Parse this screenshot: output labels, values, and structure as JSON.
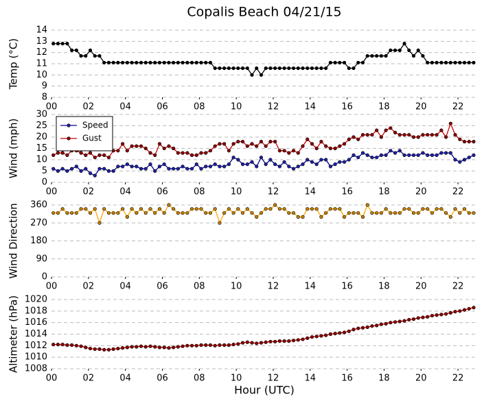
{
  "chart_data": [
    {
      "type": "line",
      "title": "Copalis Beach 04/21/15",
      "ylabel": "Temp (°C)",
      "x": [
        0.1,
        0.35,
        0.6,
        0.85,
        1.1,
        1.35,
        1.6,
        1.85,
        2.1,
        2.35,
        2.6,
        2.85,
        3.1,
        3.35,
        3.6,
        3.85,
        4.1,
        4.35,
        4.6,
        4.85,
        5.1,
        5.35,
        5.6,
        5.85,
        6.1,
        6.35,
        6.6,
        6.85,
        7.1,
        7.35,
        7.6,
        7.85,
        8.1,
        8.35,
        8.6,
        8.85,
        9.1,
        9.35,
        9.6,
        9.85,
        10.1,
        10.35,
        10.6,
        10.85,
        11.1,
        11.35,
        11.6,
        11.85,
        12.1,
        12.35,
        12.6,
        12.85,
        13.1,
        13.35,
        13.6,
        13.85,
        14.1,
        14.35,
        14.6,
        14.85,
        15.1,
        15.35,
        15.6,
        15.85,
        16.1,
        16.35,
        16.6,
        16.85,
        17.1,
        17.35,
        17.6,
        17.85,
        18.1,
        18.35,
        18.6,
        18.85,
        19.1,
        19.35,
        19.6,
        19.85,
        20.1,
        20.35,
        20.6,
        20.85,
        21.1,
        21.35,
        21.6,
        21.85,
        22.1,
        22.35,
        22.6,
        22.85
      ],
      "series": [
        {
          "name": "Temp",
          "color": "#000000",
          "marker_color": "#000000",
          "values": [
            12.8,
            12.8,
            12.8,
            12.8,
            12.2,
            12.2,
            11.7,
            11.7,
            12.2,
            11.7,
            11.7,
            11.1,
            11.1,
            11.1,
            11.1,
            11.1,
            11.1,
            11.1,
            11.1,
            11.1,
            11.1,
            11.1,
            11.1,
            11.1,
            11.1,
            11.1,
            11.1,
            11.1,
            11.1,
            11.1,
            11.1,
            11.1,
            11.1,
            11.1,
            11.1,
            10.6,
            10.6,
            10.6,
            10.6,
            10.6,
            10.6,
            10.6,
            10.6,
            10.0,
            10.6,
            10.0,
            10.6,
            10.6,
            10.6,
            10.6,
            10.6,
            10.6,
            10.6,
            10.6,
            10.6,
            10.6,
            10.6,
            10.6,
            10.6,
            10.6,
            11.1,
            11.1,
            11.1,
            11.1,
            10.6,
            10.6,
            11.1,
            11.1,
            11.7,
            11.7,
            11.7,
            11.7,
            11.7,
            12.2,
            12.2,
            12.2,
            12.8,
            12.2,
            11.7,
            12.2,
            11.7,
            11.1,
            11.1,
            11.1,
            11.1,
            11.1,
            11.1,
            11.1,
            11.1,
            11.1,
            11.1,
            11.1
          ]
        }
      ],
      "xlim": [
        0,
        23
      ],
      "xticks": [
        {
          "value": 0,
          "label": "00"
        },
        {
          "value": 2,
          "label": "02"
        },
        {
          "value": 4,
          "label": "04"
        },
        {
          "value": 6,
          "label": "06"
        },
        {
          "value": 8,
          "label": "08"
        },
        10,
        12,
        14,
        16,
        18,
        20,
        22
      ],
      "ylim": [
        8,
        14
      ],
      "yticks": [
        8,
        9,
        10,
        11,
        12,
        13,
        14
      ],
      "grid": true
    },
    {
      "type": "line",
      "ylabel": "Wind (mph)",
      "legend": "upper left",
      "x": [
        0.1,
        0.35,
        0.6,
        0.85,
        1.1,
        1.35,
        1.6,
        1.85,
        2.1,
        2.35,
        2.6,
        2.85,
        3.1,
        3.35,
        3.6,
        3.85,
        4.1,
        4.35,
        4.6,
        4.85,
        5.1,
        5.35,
        5.6,
        5.85,
        6.1,
        6.35,
        6.6,
        6.85,
        7.1,
        7.35,
        7.6,
        7.85,
        8.1,
        8.35,
        8.6,
        8.85,
        9.1,
        9.35,
        9.6,
        9.85,
        10.1,
        10.35,
        10.6,
        10.85,
        11.1,
        11.35,
        11.6,
        11.85,
        12.1,
        12.35,
        12.6,
        12.85,
        13.1,
        13.35,
        13.6,
        13.85,
        14.1,
        14.35,
        14.6,
        14.85,
        15.1,
        15.35,
        15.6,
        15.85,
        16.1,
        16.35,
        16.6,
        16.85,
        17.1,
        17.35,
        17.6,
        17.85,
        18.1,
        18.35,
        18.6,
        18.85,
        19.1,
        19.35,
        19.6,
        19.85,
        20.1,
        20.35,
        20.6,
        20.85,
        21.1,
        21.35,
        21.6,
        21.85,
        22.1,
        22.35,
        22.6,
        22.85
      ],
      "series": [
        {
          "name": "Speed",
          "color": "#00008b",
          "marker_color": "#1f1fa8",
          "values": [
            6,
            5,
            6,
            5,
            6,
            7,
            5,
            6,
            4,
            3,
            6,
            6,
            5,
            5,
            7,
            7,
            8,
            7,
            7,
            6,
            6,
            8,
            5,
            7,
            8,
            6,
            6,
            6,
            7,
            6,
            6,
            8,
            6,
            7,
            7,
            8,
            7,
            7,
            8,
            11,
            10,
            8,
            8,
            9,
            7,
            11,
            8,
            10,
            8,
            7,
            9,
            7,
            6,
            7,
            8,
            10,
            9,
            8,
            10,
            10,
            7,
            8,
            9,
            9,
            10,
            12,
            11,
            13,
            12,
            11,
            11,
            12,
            12,
            14,
            13,
            14,
            12,
            12,
            12,
            12,
            13,
            12,
            12,
            12,
            13,
            13,
            13,
            10,
            9,
            10,
            11,
            12
          ]
        },
        {
          "name": "Gust",
          "color": "#cc0000",
          "marker_color": "#8b0000",
          "values": [
            12,
            13,
            13,
            12,
            14,
            14,
            13,
            12,
            13,
            11,
            12,
            12,
            11,
            14,
            14,
            17,
            14,
            16,
            16,
            16,
            15,
            13,
            12,
            17,
            15,
            16,
            15,
            13,
            13,
            13,
            12,
            12,
            13,
            13,
            14,
            16,
            17,
            17,
            14,
            17,
            18,
            18,
            16,
            17,
            16,
            18,
            16,
            18,
            18,
            14,
            14,
            13,
            14,
            13,
            16,
            19,
            17,
            15,
            18,
            16,
            15,
            15,
            16,
            17,
            19,
            20,
            19,
            21,
            21,
            21,
            23,
            20,
            23,
            24,
            22,
            21,
            21,
            21,
            20,
            20,
            21,
            21,
            21,
            21,
            23,
            20,
            26,
            21,
            19,
            18,
            18,
            18
          ]
        }
      ],
      "xlim": [
        0,
        23
      ],
      "xticks": [
        {
          "value": 0,
          "label": "00"
        },
        {
          "value": 2,
          "label": "02"
        },
        {
          "value": 4,
          "label": "04"
        },
        {
          "value": 6,
          "label": "06"
        },
        {
          "value": 8,
          "label": "08"
        },
        10,
        12,
        14,
        16,
        18,
        20,
        22
      ],
      "ylim": [
        0,
        30
      ],
      "yticks": [
        0,
        5,
        10,
        15,
        20,
        25,
        30
      ],
      "grid": true
    },
    {
      "type": "line",
      "ylabel": "Wind Direction",
      "x": [
        0.1,
        0.35,
        0.6,
        0.85,
        1.1,
        1.35,
        1.6,
        1.85,
        2.1,
        2.35,
        2.6,
        2.85,
        3.1,
        3.35,
        3.6,
        3.85,
        4.1,
        4.35,
        4.6,
        4.85,
        5.1,
        5.35,
        5.6,
        5.85,
        6.1,
        6.35,
        6.6,
        6.85,
        7.1,
        7.35,
        7.6,
        7.85,
        8.1,
        8.35,
        8.6,
        8.85,
        9.1,
        9.35,
        9.6,
        9.85,
        10.1,
        10.35,
        10.6,
        10.85,
        11.1,
        11.35,
        11.6,
        11.85,
        12.1,
        12.35,
        12.6,
        12.85,
        13.1,
        13.35,
        13.6,
        13.85,
        14.1,
        14.35,
        14.6,
        14.85,
        15.1,
        15.35,
        15.6,
        15.85,
        16.1,
        16.35,
        16.6,
        16.85,
        17.1,
        17.35,
        17.6,
        17.85,
        18.1,
        18.35,
        18.6,
        18.85,
        19.1,
        19.35,
        19.6,
        19.85,
        20.1,
        20.35,
        20.6,
        20.85,
        21.1,
        21.35,
        21.6,
        21.85,
        22.1,
        22.35,
        22.6,
        22.85
      ],
      "series": [
        {
          "name": "Direction",
          "color": "#ffa500",
          "marker_color": "#c08000",
          "values": [
            320,
            320,
            340,
            320,
            320,
            320,
            340,
            340,
            320,
            340,
            270,
            340,
            320,
            320,
            320,
            340,
            300,
            340,
            320,
            340,
            320,
            340,
            320,
            340,
            320,
            360,
            340,
            320,
            320,
            320,
            340,
            340,
            340,
            320,
            320,
            340,
            270,
            320,
            340,
            320,
            340,
            320,
            340,
            320,
            300,
            320,
            340,
            340,
            360,
            340,
            340,
            320,
            320,
            300,
            300,
            340,
            340,
            340,
            300,
            320,
            340,
            340,
            340,
            300,
            320,
            320,
            320,
            300,
            360,
            320,
            320,
            320,
            340,
            320,
            320,
            320,
            340,
            340,
            320,
            320,
            340,
            340,
            320,
            340,
            340,
            320,
            300,
            340,
            320,
            340,
            320,
            320
          ]
        }
      ],
      "xlim": [
        0,
        23
      ],
      "xticks": [
        {
          "value": 0,
          "label": "00"
        },
        {
          "value": 2,
          "label": "02"
        },
        {
          "value": 4,
          "label": "04"
        },
        {
          "value": 6,
          "label": "06"
        },
        {
          "value": 8,
          "label": "08"
        },
        10,
        12,
        14,
        16,
        18,
        20,
        22
      ],
      "ylim": [
        0,
        360
      ],
      "yticks": [
        0,
        90,
        180,
        270,
        360
      ],
      "grid": true
    },
    {
      "type": "line",
      "ylabel": "Altimeter (hPa)",
      "xlabel": "Hour (UTC)",
      "x": [
        0.1,
        0.35,
        0.6,
        0.85,
        1.1,
        1.35,
        1.6,
        1.85,
        2.1,
        2.35,
        2.6,
        2.85,
        3.1,
        3.35,
        3.6,
        3.85,
        4.1,
        4.35,
        4.6,
        4.85,
        5.1,
        5.35,
        5.6,
        5.85,
        6.1,
        6.35,
        6.6,
        6.85,
        7.1,
        7.35,
        7.6,
        7.85,
        8.1,
        8.35,
        8.6,
        8.85,
        9.1,
        9.35,
        9.6,
        9.85,
        10.1,
        10.35,
        10.6,
        10.85,
        11.1,
        11.35,
        11.6,
        11.85,
        12.1,
        12.35,
        12.6,
        12.85,
        13.1,
        13.35,
        13.6,
        13.85,
        14.1,
        14.35,
        14.6,
        14.85,
        15.1,
        15.35,
        15.6,
        15.85,
        16.1,
        16.35,
        16.6,
        16.85,
        17.1,
        17.35,
        17.6,
        17.85,
        18.1,
        18.35,
        18.6,
        18.85,
        19.1,
        19.35,
        19.6,
        19.85,
        20.1,
        20.35,
        20.6,
        20.85,
        21.1,
        21.35,
        21.6,
        21.85,
        22.1,
        22.35,
        22.6,
        22.85
      ],
      "series": [
        {
          "name": "Altimeter",
          "color": "#cc0000",
          "marker_color": "#8b0000",
          "values": [
            1012.2,
            1012.2,
            1012.2,
            1012.1,
            1012.1,
            1012.0,
            1011.9,
            1011.7,
            1011.5,
            1011.4,
            1011.4,
            1011.3,
            1011.3,
            1011.4,
            1011.5,
            1011.6,
            1011.7,
            1011.8,
            1011.8,
            1011.9,
            1011.8,
            1011.9,
            1011.8,
            1011.7,
            1011.7,
            1011.6,
            1011.7,
            1011.8,
            1011.9,
            1012.0,
            1012.0,
            1012.0,
            1012.1,
            1012.1,
            1012.1,
            1012.0,
            1012.1,
            1012.1,
            1012.1,
            1012.2,
            1012.3,
            1012.5,
            1012.6,
            1012.5,
            1012.4,
            1012.5,
            1012.6,
            1012.7,
            1012.7,
            1012.8,
            1012.8,
            1012.8,
            1012.9,
            1013.0,
            1013.1,
            1013.3,
            1013.5,
            1013.6,
            1013.7,
            1013.8,
            1014.0,
            1014.1,
            1014.2,
            1014.3,
            1014.5,
            1014.8,
            1015.0,
            1015.1,
            1015.2,
            1015.4,
            1015.5,
            1015.7,
            1015.8,
            1016.0,
            1016.1,
            1016.2,
            1016.3,
            1016.5,
            1016.6,
            1016.8,
            1016.9,
            1017.0,
            1017.2,
            1017.3,
            1017.4,
            1017.5,
            1017.7,
            1017.9,
            1018.0,
            1018.2,
            1018.4,
            1018.6
          ]
        }
      ],
      "xlim": [
        0,
        23
      ],
      "xticks": [
        {
          "value": 0,
          "label": "00"
        },
        {
          "value": 2,
          "label": "02"
        },
        {
          "value": 4,
          "label": "04"
        },
        {
          "value": 6,
          "label": "06"
        },
        {
          "value": 8,
          "label": "08"
        },
        10,
        12,
        14,
        16,
        18,
        20,
        22
      ],
      "ylim": [
        1008,
        1020
      ],
      "yticks": [
        1008,
        1010,
        1012,
        1014,
        1016,
        1018,
        1020
      ],
      "grid": true
    }
  ]
}
